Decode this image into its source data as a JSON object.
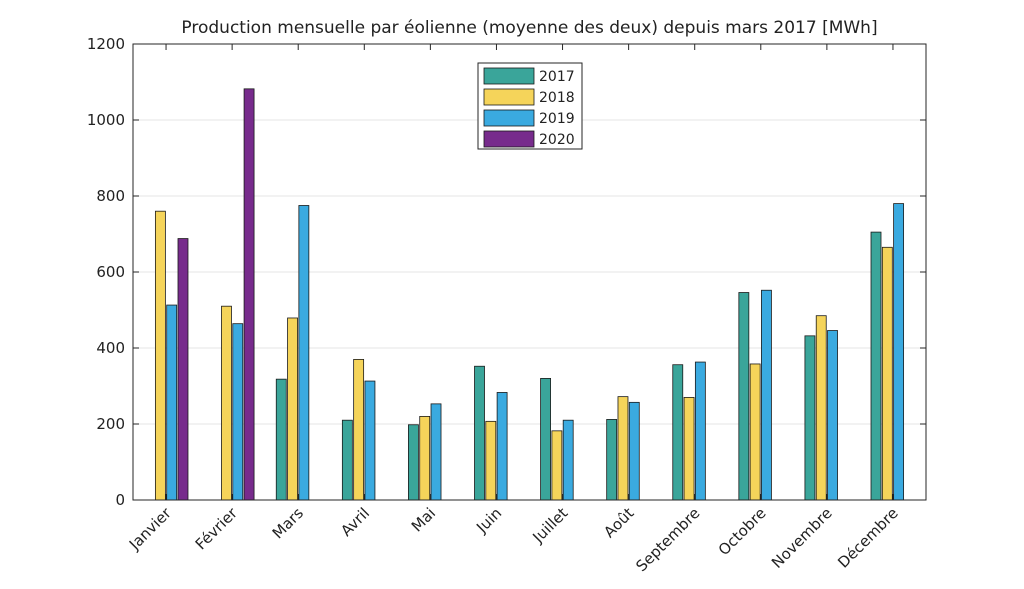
{
  "chart_data": {
    "type": "bar",
    "title": "Production mensuelle par éolienne (moyenne des deux) depuis mars 2017 [MWh]",
    "xlabel": "",
    "ylabel": "",
    "ylim": [
      0,
      1200
    ],
    "yticks": [
      0,
      200,
      400,
      600,
      800,
      1000,
      1200
    ],
    "grid": true,
    "legend_position": "top-center",
    "categories": [
      "Janvier",
      "Février",
      "Mars",
      "Avril",
      "Mai",
      "Juin",
      "Juillet",
      "Août",
      "Septembre",
      "Octobre",
      "Novembre",
      "Décembre"
    ],
    "series": [
      {
        "name": "2017",
        "color": "#3AA59A",
        "values": [
          0,
          0,
          318,
          210,
          198,
          352,
          320,
          212,
          356,
          546,
          432,
          705
        ]
      },
      {
        "name": "2018",
        "color": "#F5D45A",
        "values": [
          760,
          510,
          479,
          370,
          220,
          207,
          182,
          272,
          270,
          358,
          485,
          665
        ]
      },
      {
        "name": "2019",
        "color": "#3AAAE0",
        "values": [
          513,
          464,
          775,
          313,
          253,
          283,
          210,
          257,
          363,
          552,
          446,
          780
        ]
      },
      {
        "name": "2020",
        "color": "#772B8C",
        "values": [
          688,
          1082,
          0,
          0,
          0,
          0,
          0,
          0,
          0,
          0,
          0,
          0
        ]
      }
    ]
  }
}
